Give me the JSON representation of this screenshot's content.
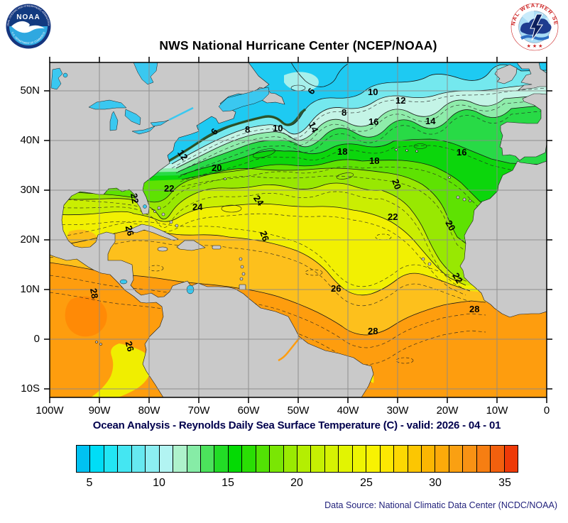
{
  "header": {
    "title": "NWS National Hurricane Center (NCEP/NOAA)",
    "noaa_logo": {
      "text": "NOAA",
      "ring_top": "NATIONAL OCEANIC AND ATMOSPHERIC ADMINISTRATION",
      "ring_bottom": "U.S. DEPARTMENT OF COMMERCE"
    },
    "nws_logo": {
      "ring_text": "NATIONAL WEATHER SERVICE",
      "stars": "★ ★ ★"
    }
  },
  "map": {
    "x_tick_labels": [
      "100W",
      "90W",
      "80W",
      "70W",
      "60W",
      "50W",
      "40W",
      "30W",
      "20W",
      "10W",
      "0"
    ],
    "y_tick_labels": [
      "50N",
      "40N",
      "30N",
      "20N",
      "10N",
      "0",
      "10S"
    ],
    "contour_labels": [
      "6",
      "10",
      "12",
      "8",
      "16",
      "14",
      "6",
      "8",
      "10",
      "14",
      "16",
      "18",
      "18",
      "12",
      "20",
      "22",
      "20",
      "24",
      "24",
      "22",
      "20",
      "22",
      "26",
      "26",
      "28",
      "26",
      "28",
      "28",
      "26",
      "22"
    ],
    "colors": {
      "land": "#c9c9c9",
      "lake": "#3ac8f0",
      "grid": "#8a8a8a",
      "coldest": "#1ecaf2",
      "warmest": "#fe9d0e"
    }
  },
  "caption": "Ocean Analysis - Reynolds Daily Sea Surface Temperature (C) - valid: 2026 - 04 - 01",
  "colorbar": {
    "tick_labels": [
      "5",
      "10",
      "15",
      "20",
      "25",
      "30",
      "35"
    ],
    "range": [
      4,
      36
    ],
    "colors": [
      "#00c2f2",
      "#00ddf6",
      "#22e6f4",
      "#44e6f2",
      "#66e8f0",
      "#8ceef2",
      "#b2f4f2",
      "#aef2cc",
      "#86eca6",
      "#4ce25c",
      "#22dc26",
      "#04da04",
      "#2ade04",
      "#52e204",
      "#7ae604",
      "#9aea02",
      "#b4ee02",
      "#c6f002",
      "#d6f202",
      "#e2f402",
      "#eef402",
      "#f8f202",
      "#fce802",
      "#fcd802",
      "#fcc602",
      "#fcb602",
      "#fcaa0a",
      "#faa012",
      "#f89214",
      "#f67e12",
      "#f2600e",
      "#ee3a08"
    ]
  },
  "footer": {
    "data_source": "Data Source: National Climatic Data Center (NCDC/NOAA)"
  }
}
